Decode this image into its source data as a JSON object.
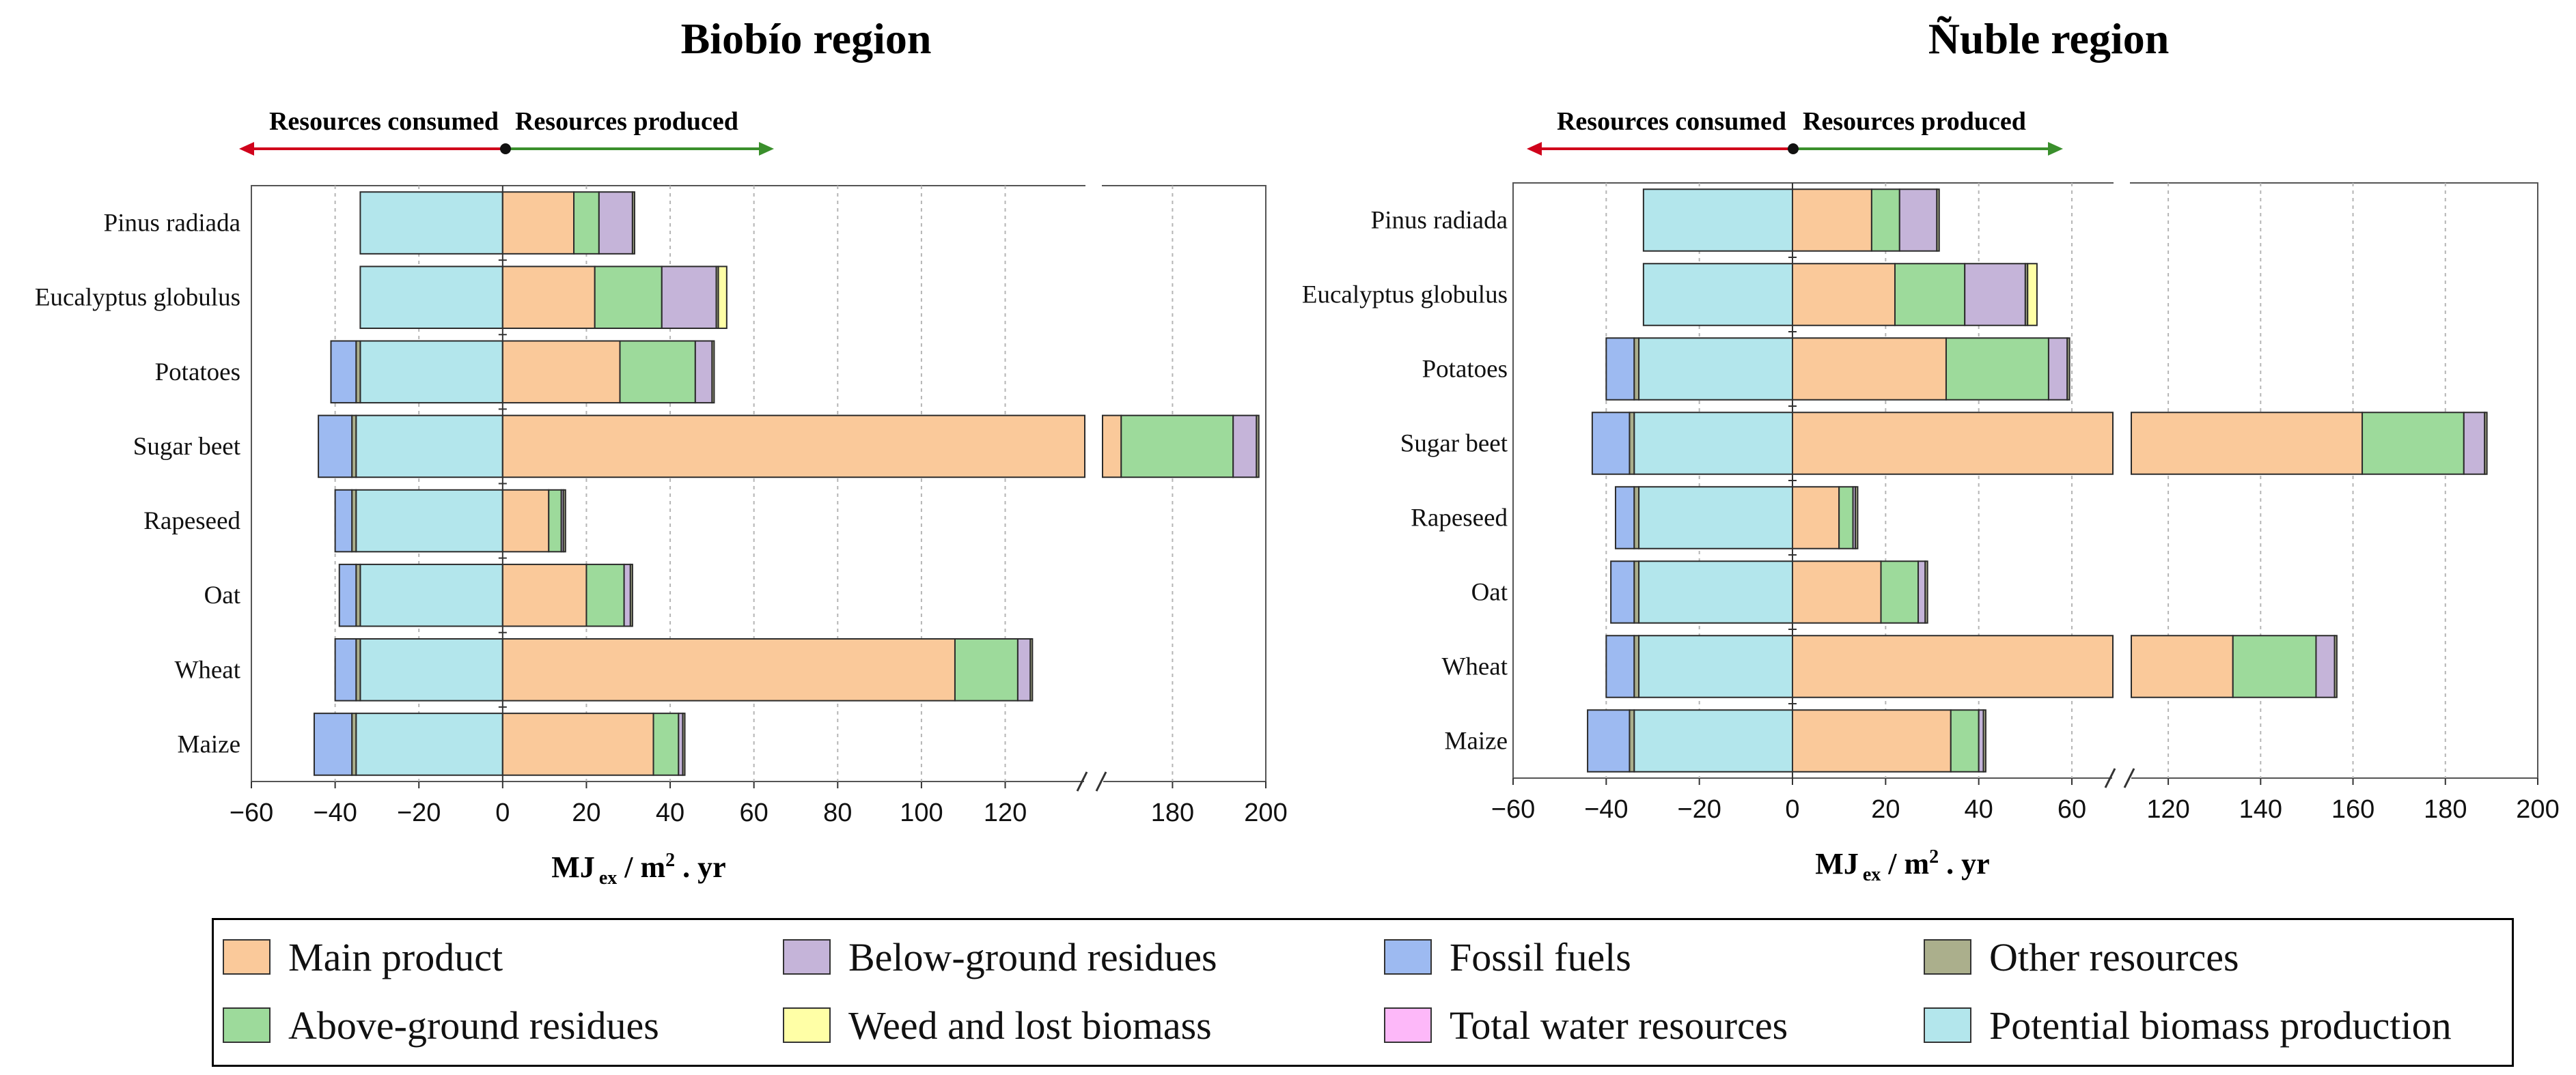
{
  "figure": {
    "legend_title": "",
    "legend": [
      {
        "key": "main",
        "label": "Main product",
        "color": "#FAC99A"
      },
      {
        "key": "bgr",
        "label": "Below-ground residues",
        "color": "#C5B4D9"
      },
      {
        "key": "fossil",
        "label": "Fossil fuels",
        "color": "#9DBAF1"
      },
      {
        "key": "other",
        "label": "Other resources",
        "color": "#ABAF8C"
      },
      {
        "key": "agr",
        "label": "Above-ground residues",
        "color": "#9DDA9B"
      },
      {
        "key": "weed",
        "label": "Weed and lost biomass",
        "color": "#FFFFA6"
      },
      {
        "key": "water",
        "label": "Total water resources",
        "color": "#FDB8F9"
      },
      {
        "key": "pbp",
        "label": "Potential biomass production",
        "color": "#B3E6EC"
      }
    ]
  },
  "chart_data": [
    {
      "type": "bar",
      "orientation": "horizontal",
      "stacked": true,
      "title": "Biobío region",
      "xlabel_main": "MJ",
      "xlabel_sub": "ex",
      "xlabel_rest": " / m",
      "xlabel_sup": "2",
      "xlabel_end": " . yr",
      "arrow_left_label": "Resources consumed",
      "arrow_right_label": "Resources produced",
      "xlim_left": [
        -60,
        139
      ],
      "xlim_right": [
        165,
        200
      ],
      "axis_break": true,
      "xticks_left": [
        -60,
        -40,
        -20,
        0,
        20,
        40,
        60,
        80,
        100,
        120
      ],
      "xticks_right": [
        180,
        200
      ],
      "xtick_labels_left": [
        "−60",
        "−40",
        "−20",
        "0",
        "20",
        "40",
        "60",
        "80",
        "100",
        "120"
      ],
      "xtick_labels_right": [
        "180",
        "200"
      ],
      "categories": [
        "Pinus radiada",
        "Eucalyptus globulus",
        "Potatoes",
        "Sugar beet",
        "Rapeseed",
        "Oat",
        "Wheat",
        "Maize"
      ],
      "series": [
        {
          "key": "pbp",
          "name": "Potential biomass production",
          "values": [
            -34,
            -34,
            -34,
            -35,
            -35,
            -34,
            -34,
            -35
          ]
        },
        {
          "key": "other",
          "name": "Other resources",
          "values": [
            0,
            0,
            -1,
            -1,
            -1,
            -1,
            -1,
            -1
          ]
        },
        {
          "key": "fossil",
          "name": "Fossil fuels",
          "values": [
            0,
            0,
            -6,
            -8,
            -4,
            -4,
            -5,
            -9
          ]
        },
        {
          "key": "water",
          "name": "Total water resources",
          "values": [
            0,
            0,
            0,
            0,
            0,
            0,
            0,
            0
          ]
        },
        {
          "key": "main",
          "name": "Main product",
          "values": [
            17,
            22,
            28,
            169,
            11,
            20,
            108,
            36
          ]
        },
        {
          "key": "agr",
          "name": "Above-ground residues",
          "values": [
            6,
            16,
            18,
            24,
            3,
            9,
            15,
            6
          ]
        },
        {
          "key": "bgr",
          "name": "Below-ground residues",
          "values": [
            8,
            13,
            4,
            5,
            0.5,
            1.5,
            3,
            1
          ]
        },
        {
          "key": "other",
          "name": "Other resources",
          "values": [
            0.5,
            0.5,
            0.5,
            0.5,
            0.5,
            0.5,
            0.5,
            0.5
          ]
        },
        {
          "key": "weed",
          "name": "Weed and lost biomass",
          "values": [
            0,
            2,
            0,
            0,
            0,
            0,
            0,
            0
          ]
        }
      ]
    },
    {
      "type": "bar",
      "orientation": "horizontal",
      "stacked": true,
      "title": "Ñuble region",
      "xlabel_main": "MJ",
      "xlabel_sub": "ex",
      "xlabel_rest": " / m",
      "xlabel_sup": "2",
      "xlabel_end": " . yr",
      "arrow_left_label": "Resources consumed",
      "arrow_right_label": "Resources produced",
      "xlim_left": [
        -60,
        68.8
      ],
      "xlim_right": [
        112,
        200
      ],
      "axis_break": true,
      "xticks_left": [
        -60,
        -40,
        -20,
        0,
        20,
        40,
        60
      ],
      "xticks_right": [
        120,
        140,
        160,
        180,
        200
      ],
      "xtick_labels_left": [
        "−60",
        "−40",
        "−20",
        "0",
        "20",
        "40",
        "60"
      ],
      "xtick_labels_right": [
        "120",
        "140",
        "160",
        "180",
        "200"
      ],
      "categories": [
        "Pinus radiada",
        "Eucalyptus globulus",
        "Potatoes",
        "Sugar beet",
        "Rapeseed",
        "Oat",
        "Wheat",
        "Maize"
      ],
      "series": [
        {
          "key": "pbp",
          "name": "Potential biomass production",
          "values": [
            -32,
            -32,
            -33,
            -34,
            -33,
            -33,
            -33,
            -34
          ]
        },
        {
          "key": "other",
          "name": "Other resources",
          "values": [
            0,
            0,
            -1,
            -1,
            -1,
            -1,
            -1,
            -1
          ]
        },
        {
          "key": "fossil",
          "name": "Fossil fuels",
          "values": [
            0,
            0,
            -6,
            -8,
            -4,
            -5,
            -6,
            -9
          ]
        },
        {
          "key": "water",
          "name": "Total water resources",
          "values": [
            0,
            0,
            0,
            0,
            0,
            0,
            0,
            0
          ]
        },
        {
          "key": "main",
          "name": "Main product",
          "values": [
            17,
            22,
            33,
            162,
            10,
            19,
            134,
            34
          ]
        },
        {
          "key": "agr",
          "name": "Above-ground residues",
          "values": [
            6,
            15,
            22,
            22,
            3,
            8,
            18,
            6
          ]
        },
        {
          "key": "bgr",
          "name": "Below-ground residues",
          "values": [
            8,
            13,
            4,
            4.5,
            0.5,
            1.5,
            4,
            1
          ]
        },
        {
          "key": "other",
          "name": "Other resources",
          "values": [
            0.5,
            0.5,
            0.5,
            0.5,
            0.5,
            0.5,
            0.5,
            0.5
          ]
        },
        {
          "key": "weed",
          "name": "Weed and lost biomass",
          "values": [
            0,
            2,
            0,
            0,
            0,
            0,
            0,
            0
          ]
        }
      ]
    }
  ]
}
